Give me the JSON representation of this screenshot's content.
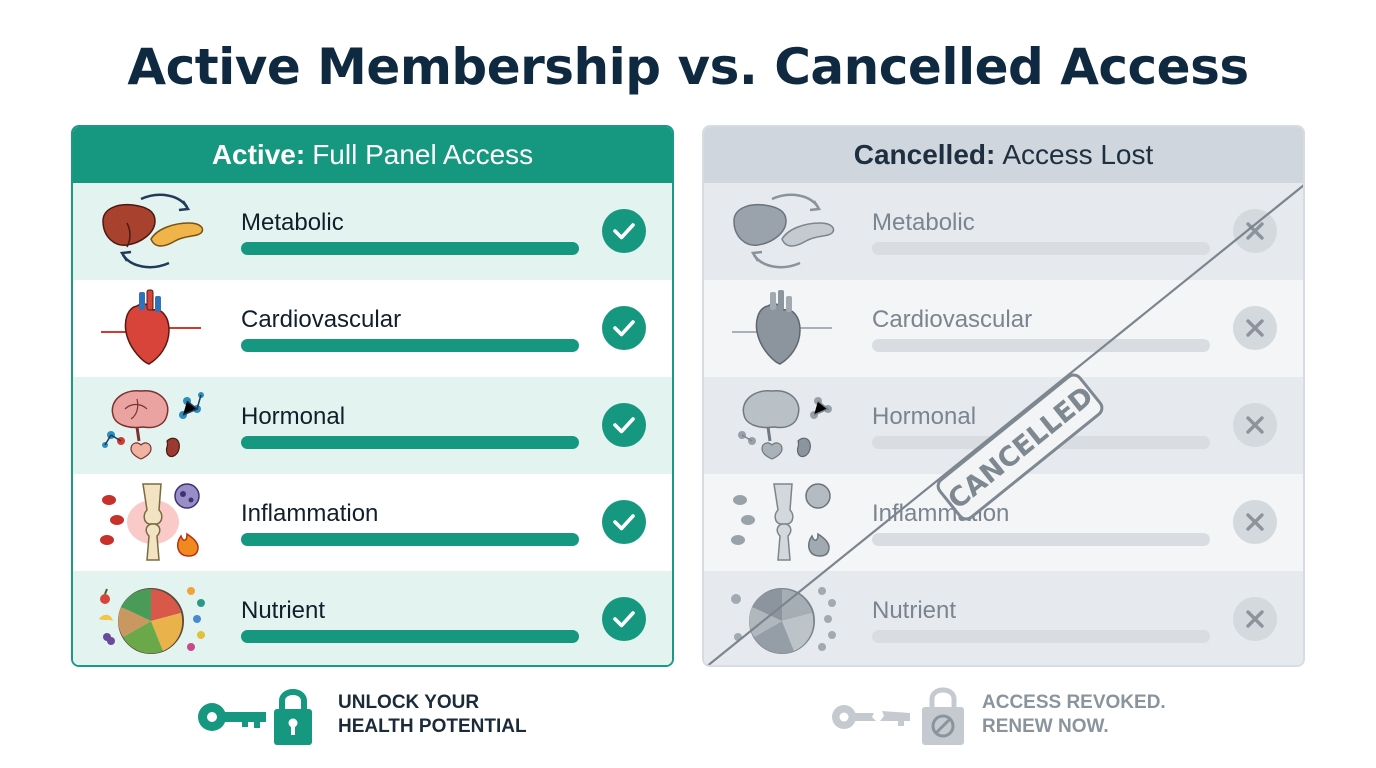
{
  "title": "Active Membership vs. Cancelled Access",
  "active": {
    "header_strong": "Active:",
    "header_rest": "Full Panel Access",
    "rows": [
      {
        "label": "Metabolic",
        "icon": "liver-pancreas-icon",
        "status": "check-icon"
      },
      {
        "label": "Cardiovascular",
        "icon": "heart-icon",
        "status": "check-icon"
      },
      {
        "label": "Hormonal",
        "icon": "brain-glands-icon",
        "status": "check-icon"
      },
      {
        "label": "Inflammation",
        "icon": "joint-inflammation-icon",
        "status": "check-icon"
      },
      {
        "label": "Nutrient",
        "icon": "food-plate-icon",
        "status": "check-icon"
      }
    ],
    "footer_line1": "UNLOCK YOUR",
    "footer_line2": "HEALTH POTENTIAL"
  },
  "cancelled": {
    "header_strong": "Cancelled:",
    "header_rest": "Access Lost",
    "rows": [
      {
        "label": "Metabolic",
        "icon": "liver-pancreas-icon",
        "status": "x-icon"
      },
      {
        "label": "Cardiovascular",
        "icon": "heart-icon",
        "status": "x-icon"
      },
      {
        "label": "Hormonal",
        "icon": "brain-glands-icon",
        "status": "x-icon"
      },
      {
        "label": "Inflammation",
        "icon": "joint-inflammation-icon",
        "status": "x-icon"
      },
      {
        "label": "Nutrient",
        "icon": "food-plate-icon",
        "status": "x-icon"
      }
    ],
    "stamp": "CANCELLED",
    "footer_line1": "ACCESS REVOKED.",
    "footer_line2": "RENEW NOW."
  },
  "colors": {
    "accent": "#16977f",
    "title": "#0f2a40",
    "cancelled_header": "#cfd6dd",
    "muted": "#7a858f"
  }
}
